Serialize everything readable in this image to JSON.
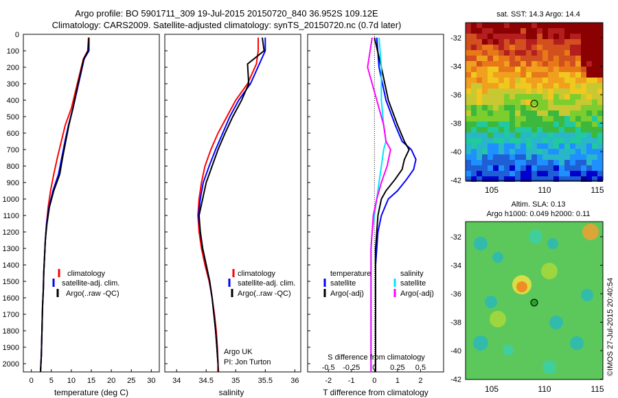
{
  "header": {
    "line1": "Argo profile: BO 5901711_309 19-Jul-2015 20150720_840 36.952S 109.12E",
    "line2": "Climatology: CARS2009. Satellite-adjusted climatology: synTS_20150720.nc (0.7d later)"
  },
  "colors": {
    "climatology": "#ff0000",
    "satellite": "#0000ff",
    "argo": "#000000",
    "sal_satellite": "#00e5ff",
    "sal_argo": "#ff00ff"
  },
  "depth_ticks": [
    "0",
    "100",
    "200",
    "300",
    "400",
    "500",
    "600",
    "700",
    "800",
    "900",
    "1000",
    "1100",
    "1200",
    "1300",
    "1400",
    "1500",
    "1600",
    "1700",
    "1800",
    "1900",
    "2000"
  ],
  "panel_temp": {
    "xlabel": "temperature (deg C)",
    "xticks": [
      "0",
      "5",
      "10",
      "15",
      "20",
      "25",
      "30"
    ],
    "legend": [
      "climatology",
      "satellite-adj. clim.",
      "Argo(..raw -QC)"
    ]
  },
  "panel_sal": {
    "xlabel": "salinity",
    "xticks": [
      "34",
      "34.5",
      "35",
      "35.5",
      "36"
    ],
    "legend": [
      "climatology",
      "satellite-adj. clim.",
      "Argo(..raw -QC)"
    ],
    "note_line1": "Argo UK",
    "note_line2": "PI: Jon Turton"
  },
  "panel_diff": {
    "xlabel": "T difference from climatology",
    "top_axis_label": "S difference from climatology",
    "xticks": [
      "-2",
      "-1",
      "0",
      "1",
      "2"
    ],
    "top_ticks": [
      "-0.5",
      "-0.25",
      "0",
      "0.25",
      "0.5"
    ],
    "legend_t_title": "temperature",
    "legend_t": [
      "satellite",
      "Argo(-adj)"
    ],
    "legend_s_title": "salinity",
    "legend_s": [
      "satellite",
      "Argo(-adj)"
    ]
  },
  "map_sst": {
    "title": "sat. SST: 14.3 Argo: 14.4",
    "yticks": [
      "-32",
      "-34",
      "-36",
      "-38",
      "-40",
      "-42"
    ],
    "xticks": [
      "105",
      "110",
      "115"
    ]
  },
  "map_sla": {
    "title1": "Altim. SLA: 0.13",
    "title2": "Argo h1000: 0.049 h2000: 0.11",
    "yticks": [
      "-32",
      "-34",
      "-36",
      "-38",
      "-40",
      "-42"
    ],
    "xticks": [
      "105",
      "110",
      "115"
    ]
  },
  "credit": "©IMOS 27-Jul-2015 20:40:54",
  "chart_data": [
    {
      "type": "line",
      "title": "",
      "xlabel": "temperature (deg C)",
      "ylabel": "",
      "xlim": [
        -2,
        32
      ],
      "ylim": [
        2050,
        0
      ],
      "series": [
        {
          "name": "climatology",
          "x": [
            14.3,
            14.1,
            13.0,
            11.5,
            10.0,
            8.5,
            7.5,
            6.5,
            5.6,
            4.8,
            4.2,
            3.8,
            3.5,
            3.3,
            3.1,
            3.0,
            2.8,
            2.7,
            2.6,
            2.5,
            2.4,
            2.3
          ],
          "y": [
            20,
            100,
            150,
            300,
            450,
            550,
            650,
            750,
            850,
            950,
            1050,
            1150,
            1250,
            1350,
            1450,
            1550,
            1650,
            1750,
            1850,
            1950,
            2000,
            2050
          ]
        },
        {
          "name": "satellite-adj. clim.",
          "x": [
            14.4,
            14.4,
            13.2,
            11.8,
            10.4,
            9.3,
            8.4,
            7.6,
            6.8,
            5.4,
            4.4,
            3.8,
            3.5,
            3.3,
            3.1,
            3.0,
            2.8,
            2.7,
            2.6,
            2.5,
            2.4,
            2.3
          ],
          "y": [
            20,
            100,
            150,
            300,
            450,
            550,
            650,
            750,
            850,
            950,
            1050,
            1150,
            1250,
            1350,
            1450,
            1550,
            1650,
            1750,
            1850,
            1950,
            2000,
            2050
          ]
        },
        {
          "name": "Argo(..raw -QC)",
          "x": [
            14.4,
            14.2,
            13.1,
            11.7,
            10.4,
            9.4,
            8.6,
            7.8,
            7.1,
            5.6,
            4.5,
            3.9,
            3.5,
            3.3,
            3.1,
            3.0,
            2.8,
            2.7,
            2.6,
            2.5,
            2.4,
            2.3
          ],
          "y": [
            20,
            100,
            150,
            300,
            450,
            550,
            650,
            750,
            850,
            950,
            1050,
            1150,
            1250,
            1350,
            1450,
            1550,
            1650,
            1750,
            1850,
            1950,
            2000,
            2050
          ]
        }
      ]
    },
    {
      "type": "line",
      "title": "",
      "xlabel": "salinity",
      "ylabel": "",
      "xlim": [
        33.8,
        36.1
      ],
      "ylim": [
        2050,
        0
      ],
      "series": [
        {
          "name": "climatology",
          "x": [
            35.38,
            35.38,
            35.35,
            35.2,
            35.0,
            34.85,
            34.7,
            34.58,
            34.48,
            34.42,
            34.38,
            34.36,
            34.38,
            34.42,
            34.48,
            34.55,
            34.6,
            34.64,
            34.67,
            34.69,
            34.7,
            34.71
          ],
          "y": [
            20,
            100,
            180,
            300,
            400,
            500,
            600,
            700,
            800,
            900,
            1000,
            1100,
            1200,
            1300,
            1400,
            1500,
            1600,
            1700,
            1800,
            1900,
            2000,
            2050
          ]
        },
        {
          "name": "satellite-adj. clim.",
          "x": [
            35.5,
            35.5,
            35.4,
            35.25,
            35.05,
            34.9,
            34.78,
            34.66,
            34.55,
            34.45,
            34.4,
            34.37,
            34.4,
            34.44,
            34.5,
            34.56,
            34.6,
            34.63,
            34.66,
            34.68,
            34.7,
            34.7
          ],
          "y": [
            20,
            100,
            180,
            300,
            400,
            500,
            600,
            700,
            800,
            900,
            1000,
            1100,
            1200,
            1300,
            1400,
            1500,
            1600,
            1700,
            1800,
            1900,
            2000,
            2050
          ]
        },
        {
          "name": "Argo(..raw -QC)",
          "x": [
            35.45,
            35.48,
            35.2,
            35.22,
            35.1,
            34.95,
            34.82,
            34.7,
            34.6,
            34.5,
            34.44,
            34.38,
            34.4,
            34.44,
            34.5,
            34.56,
            34.6,
            34.63,
            34.66,
            34.68,
            34.7,
            34.7
          ],
          "y": [
            20,
            100,
            180,
            300,
            400,
            500,
            600,
            700,
            800,
            900,
            1000,
            1100,
            1200,
            1300,
            1400,
            1500,
            1600,
            1700,
            1800,
            1900,
            2000,
            2050
          ]
        }
      ],
      "annotations": [
        "Argo UK",
        "PI: Jon Turton"
      ]
    },
    {
      "type": "line",
      "title": "",
      "xlabel": "T difference from climatology",
      "xlabel_top": "S difference from climatology",
      "xlim": [
        -2.9,
        3.0
      ],
      "ylim": [
        2050,
        0
      ],
      "series": [
        {
          "name": "temperature satellite",
          "x": [
            0.1,
            0.2,
            0.5,
            0.9,
            1.2,
            1.6,
            1.8,
            1.7,
            1.4,
            1.0,
            0.6,
            0.3,
            0.15,
            0.1,
            0.05,
            0.05,
            0.05,
            0.05,
            0.05,
            0.05,
            0.05
          ],
          "y": [
            20,
            200,
            400,
            550,
            650,
            700,
            760,
            820,
            880,
            950,
            1000,
            1100,
            1200,
            1300,
            1400,
            1500,
            1600,
            1700,
            1800,
            1900,
            2050
          ]
        },
        {
          "name": "temperature Argo(-adj)",
          "x": [
            0.0,
            0.3,
            0.6,
            1.0,
            1.3,
            1.5,
            1.3,
            1.2,
            0.9,
            0.5,
            0.3,
            0.15,
            0.1,
            0.05,
            0.05,
            0.05,
            0.05,
            0.05,
            0.05,
            0.05,
            0.05
          ],
          "y": [
            20,
            200,
            400,
            550,
            650,
            700,
            760,
            820,
            880,
            950,
            1000,
            1100,
            1200,
            1300,
            1400,
            1500,
            1600,
            1700,
            1800,
            1900,
            2050
          ]
        },
        {
          "name": "salinity satellite",
          "x": [
            0.2,
            0.3,
            0.3,
            0.4,
            0.5,
            0.4,
            0.3,
            0.2,
            0.1,
            0.0,
            -0.1,
            -0.15,
            -0.15,
            -0.15,
            -0.15,
            -0.15,
            -0.15,
            -0.15,
            -0.15,
            -0.15
          ],
          "y": [
            20,
            200,
            400,
            550,
            650,
            700,
            800,
            900,
            1000,
            1100,
            1200,
            1300,
            1400,
            1500,
            1600,
            1700,
            1800,
            1900,
            2000,
            2050
          ]
        },
        {
          "name": "salinity Argo(-adj)",
          "x": [
            -0.1,
            -0.3,
            0.1,
            0.4,
            0.5,
            0.7,
            0.55,
            0.3,
            0.1,
            -0.05,
            -0.1,
            -0.15,
            -0.15,
            -0.15,
            -0.15,
            -0.15,
            -0.15,
            -0.15,
            -0.15,
            -0.15
          ],
          "y": [
            20,
            200,
            400,
            550,
            650,
            700,
            800,
            900,
            1000,
            1100,
            1200,
            1300,
            1400,
            1500,
            1600,
            1700,
            1800,
            1900,
            2000,
            2050
          ]
        }
      ]
    }
  ]
}
